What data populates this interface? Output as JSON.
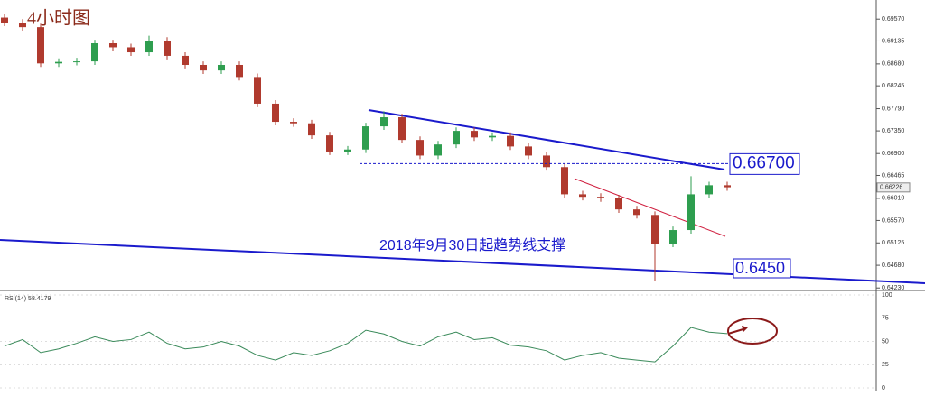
{
  "chart_data": {
    "type": "candlestick",
    "title": "4小时图",
    "color_up": "#2e9e4f",
    "color_down": "#b03a2e",
    "open": [
      0.696,
      0.695,
      0.6941,
      0.6869,
      0.6872,
      0.6873,
      0.6909,
      0.6901,
      0.6891,
      0.6914,
      0.6884,
      0.6866,
      0.6855,
      0.6866,
      0.6842,
      0.6789,
      0.6753,
      0.675,
      0.6726,
      0.6694,
      0.6698,
      0.6744,
      0.6762,
      0.6717,
      0.6686,
      0.6708,
      0.6735,
      0.6722,
      0.6725,
      0.6704,
      0.6686,
      0.6663,
      0.6609,
      0.6604,
      0.6601,
      0.6579,
      0.6568,
      0.6511,
      0.6538,
      0.6609,
      0.6627
    ],
    "high": [
      0.6967,
      0.6957,
      0.6948,
      0.6879,
      0.688,
      0.6916,
      0.6916,
      0.6908,
      0.6924,
      0.6921,
      0.6891,
      0.6873,
      0.6873,
      0.6873,
      0.6849,
      0.6796,
      0.676,
      0.6757,
      0.6733,
      0.6705,
      0.6751,
      0.6774,
      0.6769,
      0.6724,
      0.6715,
      0.6742,
      0.6742,
      0.6732,
      0.6732,
      0.6711,
      0.6693,
      0.667,
      0.6616,
      0.6611,
      0.6608,
      0.6586,
      0.6575,
      0.6545,
      0.6645,
      0.6634,
      0.6634
    ],
    "low": [
      0.6943,
      0.6934,
      0.6862,
      0.6862,
      0.6865,
      0.6866,
      0.6894,
      0.6884,
      0.6884,
      0.6877,
      0.6859,
      0.6848,
      0.6848,
      0.6835,
      0.6782,
      0.6746,
      0.6743,
      0.6719,
      0.6687,
      0.6687,
      0.6691,
      0.6737,
      0.671,
      0.6679,
      0.6679,
      0.6701,
      0.6715,
      0.6715,
      0.6697,
      0.6679,
      0.6656,
      0.6602,
      0.6597,
      0.6594,
      0.6572,
      0.6561,
      0.6436,
      0.6504,
      0.6531,
      0.6602,
      0.6616
    ],
    "close": [
      0.695,
      0.6941,
      0.6869,
      0.6872,
      0.6873,
      0.6909,
      0.6901,
      0.6891,
      0.6914,
      0.6884,
      0.6866,
      0.6855,
      0.6866,
      0.6842,
      0.6789,
      0.6753,
      0.675,
      0.6726,
      0.6694,
      0.6698,
      0.6744,
      0.6762,
      0.6717,
      0.6686,
      0.6708,
      0.6735,
      0.6722,
      0.6725,
      0.6704,
      0.6686,
      0.6663,
      0.6609,
      0.6604,
      0.6601,
      0.6579,
      0.6568,
      0.6511,
      0.6538,
      0.6609,
      0.6627,
      0.6623
    ],
    "ylim": [
      0.6418,
      0.6995
    ],
    "yticks": [
      {
        "value": 0.6957,
        "label": "0.69570"
      },
      {
        "value": 0.69135,
        "label": "0.69135"
      },
      {
        "value": 0.6868,
        "label": "0.68680"
      },
      {
        "value": 0.68245,
        "label": "0.68245"
      },
      {
        "value": 0.6779,
        "label": "0.67790"
      },
      {
        "value": 0.6735,
        "label": "0.67350"
      },
      {
        "value": 0.669,
        "label": "0.66900"
      },
      {
        "value": 0.66465,
        "label": "0.66465"
      },
      {
        "value": 0.6601,
        "label": "0.66010"
      },
      {
        "value": 0.6557,
        "label": "0.65570"
      },
      {
        "value": 0.65125,
        "label": "0.65125"
      },
      {
        "value": 0.6468,
        "label": "0.64680"
      },
      {
        "value": 0.6423,
        "label": "0.64230"
      }
    ],
    "last_price": {
      "value": 0.66226,
      "label": "0.66226"
    },
    "annotations": [
      {
        "value": 0.667,
        "label": "0.66700"
      },
      {
        "value": 0.645,
        "label": "0.6450"
      }
    ],
    "trendline_note": "2018年9月30日起趋势线支撑",
    "rsi": {
      "label": "RSI(14) 58.4179",
      "values": [
        45,
        52,
        38,
        42,
        48,
        55,
        50,
        52,
        60,
        48,
        42,
        44,
        50,
        45,
        35,
        30,
        38,
        35,
        40,
        48,
        62,
        58,
        50,
        45,
        55,
        60,
        52,
        54,
        46,
        44,
        40,
        30,
        35,
        38,
        32,
        30,
        28,
        45,
        65,
        60,
        58.4179
      ],
      "ylim": [
        0,
        100
      ],
      "yticks": [
        100,
        75,
        50,
        25,
        0
      ]
    }
  }
}
